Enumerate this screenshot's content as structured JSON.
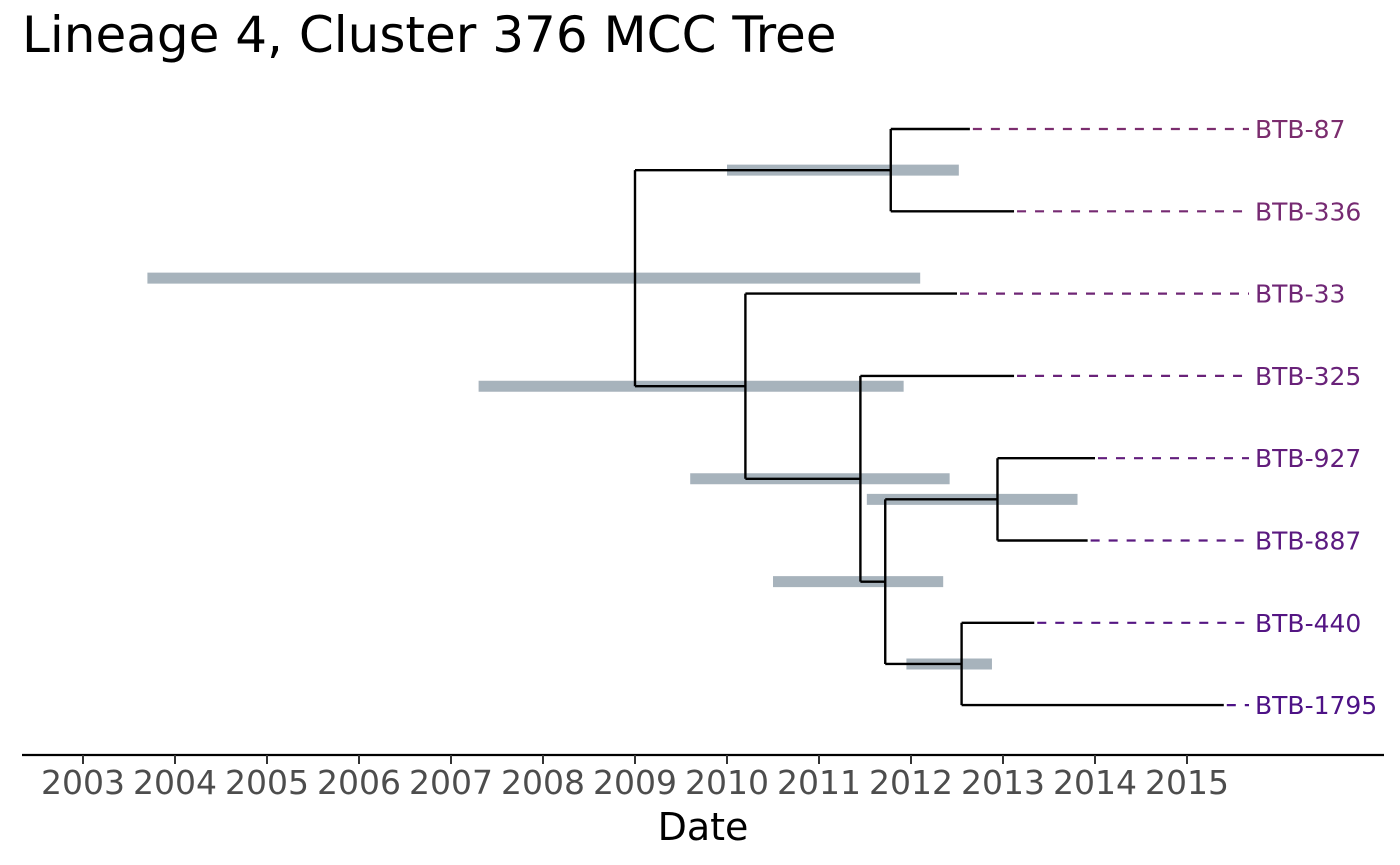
{
  "chart_data": {
    "type": "phylogenetic-tree",
    "title": "Lineage 4, Cluster 376 MCC Tree",
    "xlabel": "Date",
    "xlim": [
      2002.6,
      2017.3
    ],
    "x_ticks": [
      "2003",
      "2004",
      "2005",
      "2006",
      "2007",
      "2008",
      "2009",
      "2010",
      "2011",
      "2012",
      "2013",
      "2014",
      "2015"
    ],
    "grid": false,
    "tips": [
      {
        "label": "BTB-87",
        "date": 2012.64,
        "color": "#7b2d6e"
      },
      {
        "label": "BTB-336",
        "date": 2013.12,
        "color": "#762a72"
      },
      {
        "label": "BTB-33",
        "date": 2012.5,
        "color": "#6f2675"
      },
      {
        "label": "BTB-325",
        "date": 2013.12,
        "color": "#692279"
      },
      {
        "label": "BTB-927",
        "date": 2014.0,
        "color": "#621d7c"
      },
      {
        "label": "BTB-887",
        "date": 2013.92,
        "color": "#5b1a80"
      },
      {
        "label": "BTB-440",
        "date": 2013.34,
        "color": "#541583"
      },
      {
        "label": "BTB-1795",
        "date": 2015.4,
        "color": "#4d1286"
      }
    ],
    "nodes": [
      {
        "id": "root",
        "date": 2009.0,
        "hpd": [
          2003.7,
          2012.1
        ],
        "children": [
          "n87_336",
          "n2"
        ]
      },
      {
        "id": "n87_336",
        "date": 2011.78,
        "hpd": [
          2010.0,
          2012.52
        ],
        "children": [
          "BTB-87",
          "BTB-336"
        ]
      },
      {
        "id": "n2",
        "date": 2010.2,
        "hpd": [
          2007.3,
          2011.92
        ],
        "children": [
          "BTB-33",
          "n3"
        ]
      },
      {
        "id": "n3",
        "date": 2011.45,
        "hpd": [
          2009.6,
          2012.42
        ],
        "children": [
          "BTB-325",
          "n4"
        ]
      },
      {
        "id": "n4",
        "date": 2011.72,
        "hpd": [
          2010.5,
          2012.35
        ],
        "children": [
          "n927_887",
          "n440_1795"
        ]
      },
      {
        "id": "n927_887",
        "date": 2012.94,
        "hpd": [
          2011.52,
          2013.81
        ],
        "children": [
          "BTB-927",
          "BTB-887"
        ]
      },
      {
        "id": "n440_1795",
        "date": 2012.55,
        "hpd": [
          2011.95,
          2012.88
        ],
        "children": [
          "BTB-440",
          "BTB-1795"
        ]
      }
    ]
  }
}
